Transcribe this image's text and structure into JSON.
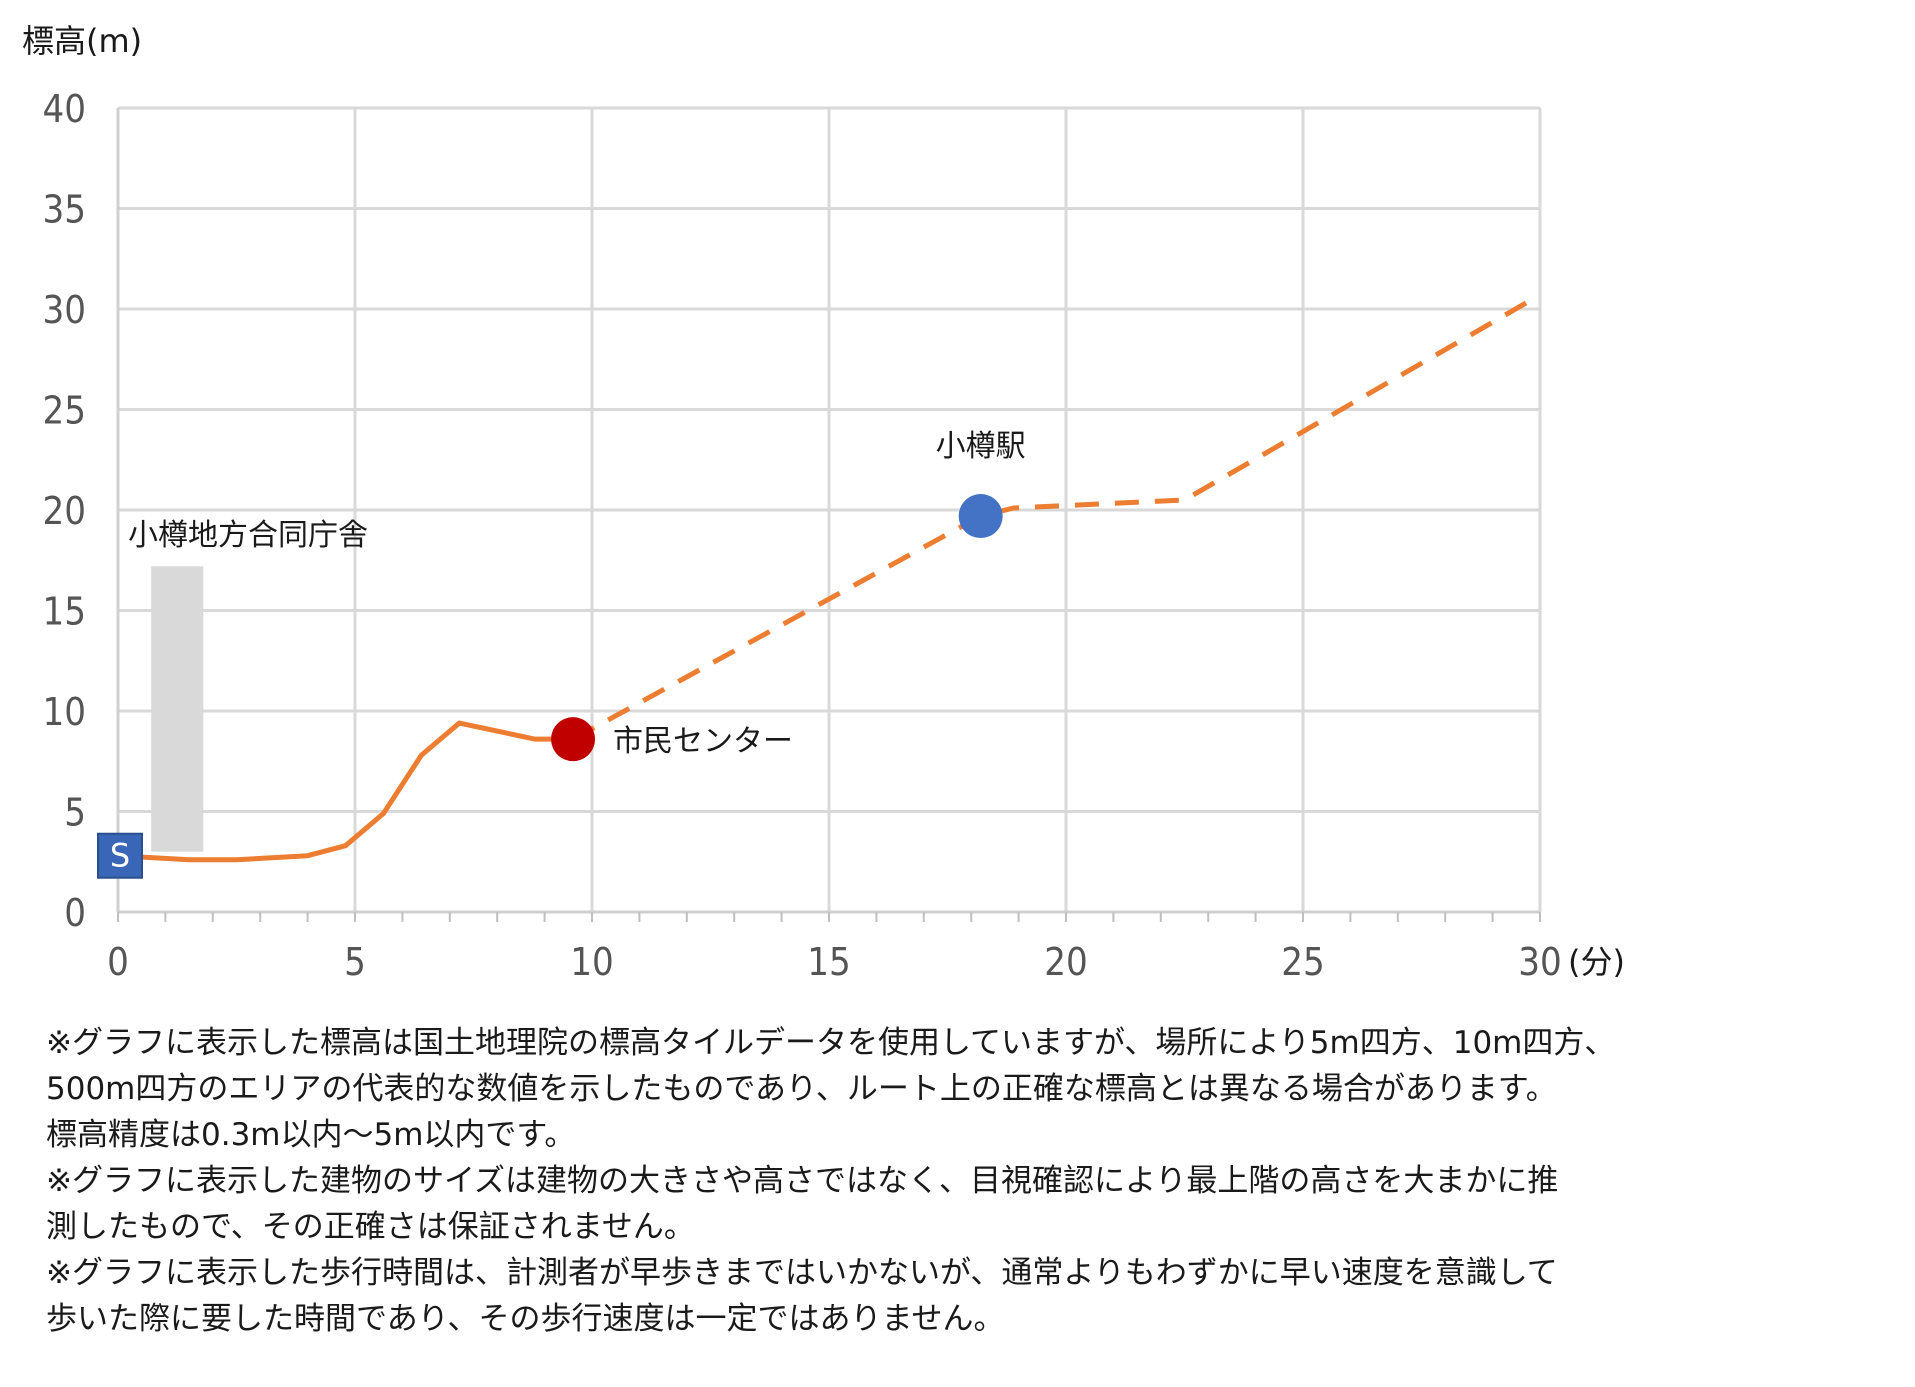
{
  "chart_data": {
    "type": "line",
    "ylabel": "標高(m)",
    "xlabel": "(分)",
    "xlim": [
      0,
      30
    ],
    "ylim": [
      0,
      40
    ],
    "x_ticks": [
      0,
      5,
      10,
      15,
      20,
      25,
      30
    ],
    "y_ticks": [
      0,
      5,
      10,
      15,
      20,
      25,
      30,
      35,
      40
    ],
    "grid": true,
    "series": [
      {
        "style": "solid",
        "color": "#ED7D31",
        "points": [
          [
            0,
            2.8
          ],
          [
            1.5,
            2.6
          ],
          [
            2.5,
            2.6
          ],
          [
            4,
            2.8
          ],
          [
            4.8,
            3.3
          ],
          [
            5.6,
            4.9
          ],
          [
            6.4,
            7.8
          ],
          [
            7.2,
            9.4
          ],
          [
            8.8,
            8.6
          ],
          [
            9.6,
            8.6
          ]
        ]
      },
      {
        "style": "dashed",
        "color": "#ED7D31",
        "points": [
          [
            9.6,
            8.6
          ],
          [
            18.2,
            19.7
          ],
          [
            18.9,
            20.1
          ],
          [
            22.5,
            20.5
          ],
          [
            30,
            30.7
          ]
        ]
      }
    ],
    "markers": [
      {
        "label": "S",
        "x": 0,
        "y": 2.8,
        "color": "#3A66B8",
        "shape": "square"
      },
      {
        "label": "市民センター",
        "x": 9.6,
        "y": 8.6,
        "color": "#C00000",
        "shape": "circle"
      },
      {
        "label": "小樽駅",
        "x": 18.2,
        "y": 19.7,
        "color": "#4472C4",
        "shape": "circle"
      }
    ],
    "buildings": [
      {
        "label": "小樽地方合同庁舎",
        "x_start": 0.7,
        "x_end": 1.8,
        "y_base": 3.0,
        "y_top": 17.2,
        "color": "#D9D9D9"
      }
    ]
  },
  "notes": [
    "※グラフに表示した標高は国土地理院の標高タイルデータを使用していますが、場所により5m四方、10m四方、",
    "500m四方のエリアの代表的な数値を示したものであり、ルート上の正確な標高とは異なる場合があります。",
    "標高精度は0.3m以内〜5m以内です。",
    "※グラフに表示した建物のサイズは建物の大きさや高さではなく、目視確認により最上階の高さを大まかに推",
    "測したもので、その正確さは保証されません。",
    "※グラフに表示した歩行時間は、計測者が早歩きまではいかないが、通常よりもわずかに早い速度を意識して",
    "歩いた際に要した時間であり、その歩行速度は一定ではありません。"
  ]
}
